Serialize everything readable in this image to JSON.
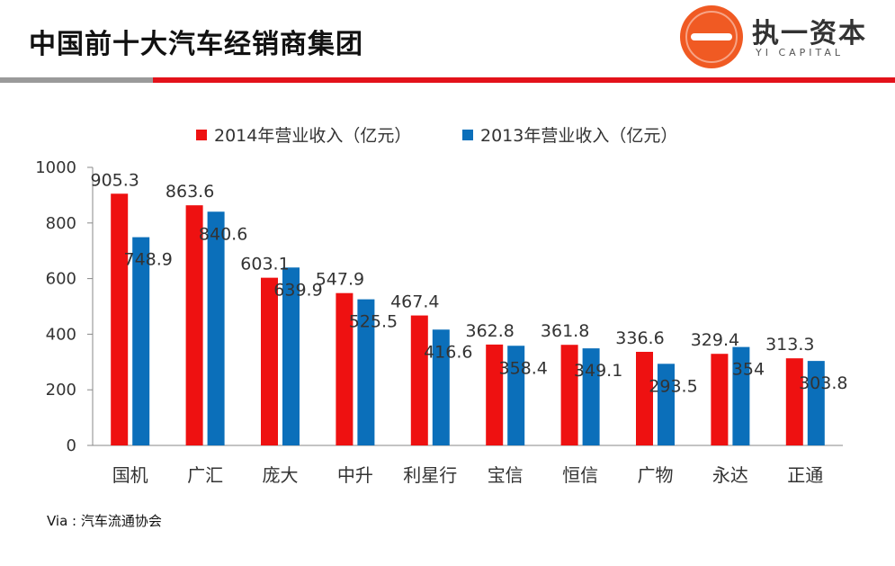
{
  "header": {
    "title": "中国前十大汽车经销商集团",
    "logo_name": "执一资本",
    "logo_sub": "YI CAPITAL"
  },
  "colors": {
    "series_2014": "#ee1111",
    "series_2013": "#0b6fba",
    "accent_red": "#e3121a",
    "accent_gray": "#9a9a9a"
  },
  "chart_data": {
    "type": "bar",
    "categories": [
      "国机",
      "广汇",
      "庞大",
      "中升",
      "利星行",
      "宝信",
      "恒信",
      "广物",
      "永达",
      "正通"
    ],
    "series": [
      {
        "name": "2014年营业收入（亿元）",
        "values": [
          905.3,
          863.6,
          603.1,
          547.9,
          467.4,
          362.8,
          361.8,
          336.6,
          329.4,
          313.3
        ]
      },
      {
        "name": "2013年营业收入（亿元）",
        "values": [
          748.9,
          840.6,
          639.9,
          525.5,
          416.6,
          358.4,
          349.1,
          293.5,
          354,
          303.8
        ]
      }
    ],
    "labels": [
      [
        "905.3",
        "863.6",
        "603.1",
        "547.9",
        "467.4",
        "362.8",
        "361.8",
        "336.6",
        "329.4",
        "313.3"
      ],
      [
        "748.9",
        "840.6",
        "639.9",
        "525.5",
        "416.6",
        "358.4",
        "349.1",
        "293.5",
        "354",
        "303.8"
      ]
    ],
    "ylim": [
      0,
      1000
    ],
    "yticks": [
      0,
      200,
      400,
      600,
      800,
      1000
    ],
    "title": "",
    "xlabel": "",
    "ylabel": "",
    "legend_position": "top"
  },
  "footer": {
    "source": "Via : 汽车流通协会"
  }
}
